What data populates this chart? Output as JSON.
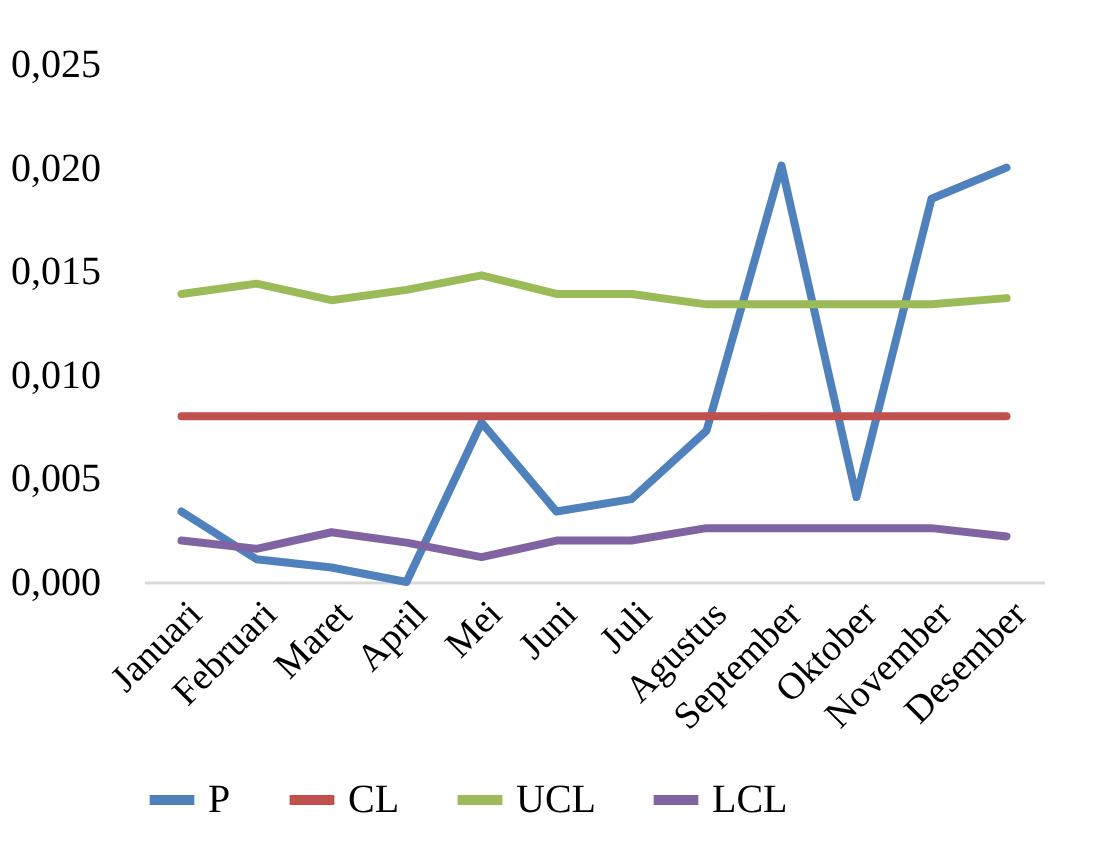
{
  "chart_data": {
    "type": "line",
    "categories": [
      "Januari",
      "Februari",
      "Maret",
      "April",
      "Mei",
      "Juni",
      "Juli",
      "Agustus",
      "September",
      "Oktober",
      "November",
      "Desember"
    ],
    "series": [
      {
        "name": "P",
        "color": "#4f81bd",
        "values": [
          0.0034,
          0.0011,
          0.0007,
          0.0,
          0.0077,
          0.0034,
          0.004,
          0.0073,
          0.0201,
          0.0041,
          0.0185,
          0.02
        ]
      },
      {
        "name": "CL",
        "color": "#c0504d",
        "values": [
          0.008,
          0.008,
          0.008,
          0.008,
          0.008,
          0.008,
          0.008,
          0.008,
          0.008,
          0.008,
          0.008,
          0.008
        ]
      },
      {
        "name": "UCL",
        "color": "#9bbb59",
        "values": [
          0.0139,
          0.0144,
          0.0136,
          0.0141,
          0.0148,
          0.0139,
          0.0139,
          0.0134,
          0.0134,
          0.0134,
          0.0134,
          0.0137
        ]
      },
      {
        "name": "LCL",
        "color": "#8064a2",
        "values": [
          0.002,
          0.0016,
          0.0024,
          0.0019,
          0.0012,
          0.002,
          0.002,
          0.0026,
          0.0026,
          0.0026,
          0.0026,
          0.0022
        ]
      }
    ],
    "ylim": [
      0,
      0.025
    ],
    "yticks": [
      {
        "value": 0,
        "label": "0,000"
      },
      {
        "value": 0.005,
        "label": "0,005"
      },
      {
        "value": 0.01,
        "label": "0,010"
      },
      {
        "value": 0.015,
        "label": "0,015"
      },
      {
        "value": 0.02,
        "label": "0,020"
      },
      {
        "value": 0.025,
        "label": "0,025"
      }
    ],
    "legend": "bottom",
    "marker": "none",
    "line_style": "solid"
  }
}
